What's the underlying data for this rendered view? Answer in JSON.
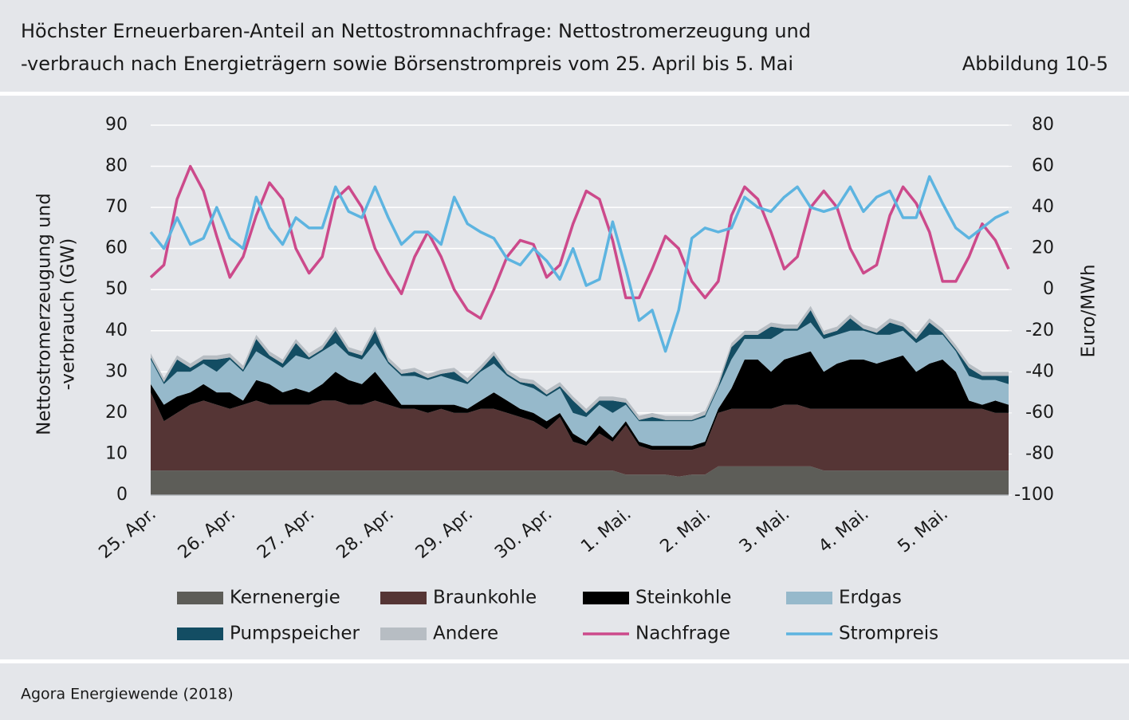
{
  "header": {
    "title": [
      "Höchster Erneuerbaren-Anteil an Nettostromnachfrage: Nettostromerzeugung und",
      "-verbrauch nach Energieträgern sowie Börsenstrompreis vom 25. April bis 5. Mai"
    ],
    "figure": "Abbildung 10-5"
  },
  "footer": {
    "source": "Agora Energiewende (2018)"
  },
  "chart_data": {
    "type": "area",
    "ylabel": [
      "Nettostromerzeugung und",
      "-verbrauch (GW)"
    ],
    "y2label": "Euro/MWh",
    "ylim": [
      0,
      90
    ],
    "yticks": [
      0,
      10,
      20,
      30,
      40,
      50,
      60,
      70,
      80,
      90
    ],
    "y2lim": [
      -100,
      80
    ],
    "y2ticks": [
      -100,
      -80,
      -60,
      -40,
      -20,
      0,
      20,
      40,
      60,
      80
    ],
    "grid": true,
    "categories": [
      "25. Apr.",
      null,
      null,
      null,
      null,
      null,
      "26. Apr.",
      null,
      null,
      null,
      null,
      null,
      "27. Apr.",
      null,
      null,
      null,
      null,
      null,
      "28. Apr.",
      null,
      null,
      null,
      null,
      null,
      "29. Apr.",
      null,
      null,
      null,
      null,
      null,
      "30. Apr.",
      null,
      null,
      null,
      null,
      null,
      "1. Mai.",
      null,
      null,
      null,
      null,
      null,
      "2. Mai.",
      null,
      null,
      null,
      null,
      null,
      "3. Mai.",
      null,
      null,
      null,
      null,
      null,
      "4. Mai.",
      null,
      null,
      null,
      null,
      null,
      "5. Mai.",
      null,
      null,
      null,
      null,
      null
    ],
    "series": [
      {
        "name": "Kernenergie",
        "type": "area",
        "color": "#5d5d58",
        "values": [
          6,
          6,
          6,
          6,
          6,
          6,
          6,
          6,
          6,
          6,
          6,
          6,
          6,
          6,
          6,
          6,
          6,
          6,
          6,
          6,
          6,
          6,
          6,
          6,
          6,
          6,
          6,
          6,
          6,
          6,
          6,
          6,
          6,
          6,
          6,
          6,
          5,
          5,
          5,
          5,
          4.5,
          5,
          5,
          7,
          7,
          7,
          7,
          7,
          7,
          7,
          7,
          6,
          6,
          6,
          6,
          6,
          6,
          6,
          6,
          6,
          6,
          6,
          6,
          6,
          6,
          6
        ]
      },
      {
        "name": "Braunkohle",
        "type": "area",
        "color": "#553535",
        "values": [
          19,
          12,
          14,
          16,
          17,
          16,
          15,
          16,
          17,
          16,
          16,
          16,
          16,
          17,
          17,
          16,
          16,
          17,
          16,
          15,
          15,
          14,
          15,
          14,
          14,
          15,
          15,
          14,
          13,
          12,
          10,
          13,
          7,
          6,
          9,
          7,
          12,
          7,
          6,
          6,
          6.5,
          6,
          7,
          13,
          14,
          14,
          14,
          14,
          15,
          15,
          14,
          15,
          15,
          15,
          15,
          15,
          15,
          15,
          15,
          15,
          15,
          15,
          15,
          15,
          14,
          14
        ]
      },
      {
        "name": "Steinkohle",
        "type": "area",
        "color": "#000000",
        "values": [
          2,
          4,
          4,
          3,
          4,
          3,
          4,
          1,
          5,
          5,
          3,
          4,
          3,
          4,
          7,
          6,
          5,
          7,
          4,
          1,
          1,
          2,
          1,
          2,
          1,
          2,
          4,
          3,
          2,
          2,
          2,
          1,
          2,
          1,
          2,
          1,
          1,
          1,
          1,
          1,
          1,
          1,
          1,
          1,
          5,
          12,
          12,
          9,
          11,
          12,
          14,
          9,
          11,
          12,
          12,
          11,
          12,
          13,
          9,
          11,
          12,
          9,
          2,
          1,
          3,
          2
        ]
      },
      {
        "name": "Erdgas",
        "type": "area",
        "color": "#96b9cb",
        "values": [
          6,
          5,
          6,
          5,
          5,
          5,
          8,
          7,
          7,
          6,
          6,
          8,
          8,
          8,
          7,
          6,
          6,
          7,
          6,
          7,
          7,
          6,
          7,
          6,
          6,
          7,
          7,
          6,
          6,
          6,
          6,
          6,
          5,
          6,
          5,
          6,
          4,
          5,
          6,
          6,
          6,
          6,
          6,
          5,
          7,
          5,
          5,
          8,
          7,
          6,
          7,
          8,
          7,
          7,
          7,
          7,
          6,
          6,
          7,
          7,
          6,
          5,
          6,
          6,
          5,
          5
        ]
      },
      {
        "name": "Pumpspeicher",
        "type": "area",
        "color": "#134d63",
        "values": [
          0.5,
          0.5,
          3,
          1,
          1,
          3,
          0.5,
          0.5,
          3,
          1,
          1,
          3,
          0.5,
          0.5,
          3,
          1,
          1,
          3,
          0.5,
          0.5,
          1,
          0.5,
          0.5,
          2,
          0.5,
          0.5,
          2,
          0.5,
          0.5,
          1,
          0.5,
          0.5,
          3,
          1,
          1,
          3,
          0.5,
          0.3,
          1,
          0.3,
          0.3,
          0.3,
          0.5,
          0.5,
          3,
          1,
          1,
          3,
          0.5,
          0.5,
          3,
          1,
          1,
          3,
          0.5,
          0.5,
          3,
          1,
          1,
          3,
          0.5,
          0.5,
          2,
          1,
          1,
          2
        ]
      },
      {
        "name": "Andere",
        "type": "area",
        "color": "#b7bdc3",
        "values": [
          1,
          1,
          1,
          1,
          1,
          1,
          1,
          1,
          1,
          1,
          1,
          1,
          1,
          1,
          1,
          1,
          1,
          1,
          1,
          1,
          1,
          1,
          1,
          1,
          1,
          1,
          1,
          1,
          1,
          1,
          1,
          1,
          1,
          1,
          1,
          1,
          1,
          1,
          1,
          1,
          1,
          1,
          1,
          1,
          1,
          1,
          1,
          1,
          1,
          1,
          1,
          1,
          1,
          1,
          1,
          1,
          1,
          1,
          1,
          1,
          1,
          1,
          1,
          1,
          1,
          1
        ]
      },
      {
        "name": "Nachfrage",
        "type": "line",
        "color": "#cc4a8b",
        "values": [
          53,
          56,
          72,
          80,
          74,
          63,
          53,
          58,
          68,
          76,
          72,
          60,
          54,
          58,
          72,
          75,
          70,
          60,
          54,
          49,
          58,
          64,
          58,
          50,
          45,
          43,
          50,
          58,
          62,
          61,
          53,
          56,
          66,
          74,
          72,
          62,
          48,
          48,
          55,
          63,
          60,
          52,
          48,
          52,
          68,
          75,
          72,
          64,
          55,
          58,
          70,
          74,
          70,
          60,
          54,
          56,
          68,
          75,
          71,
          64,
          52,
          52,
          58,
          66,
          62,
          55
        ]
      },
      {
        "name": "Strompreis",
        "type": "line",
        "axis": "y2",
        "color": "#5db4e0",
        "values": [
          28,
          20,
          35,
          22,
          25,
          40,
          25,
          20,
          45,
          30,
          22,
          35,
          30,
          30,
          50,
          38,
          35,
          50,
          35,
          22,
          28,
          28,
          22,
          45,
          32,
          28,
          25,
          15,
          12,
          20,
          14,
          5,
          20,
          2,
          5,
          33,
          10,
          -15,
          -10,
          -30,
          -10,
          25,
          30,
          28,
          30,
          45,
          40,
          38,
          45,
          50,
          40,
          38,
          40,
          50,
          38,
          45,
          48,
          35,
          35,
          55,
          42,
          30,
          25,
          30,
          35,
          38
        ]
      }
    ]
  }
}
